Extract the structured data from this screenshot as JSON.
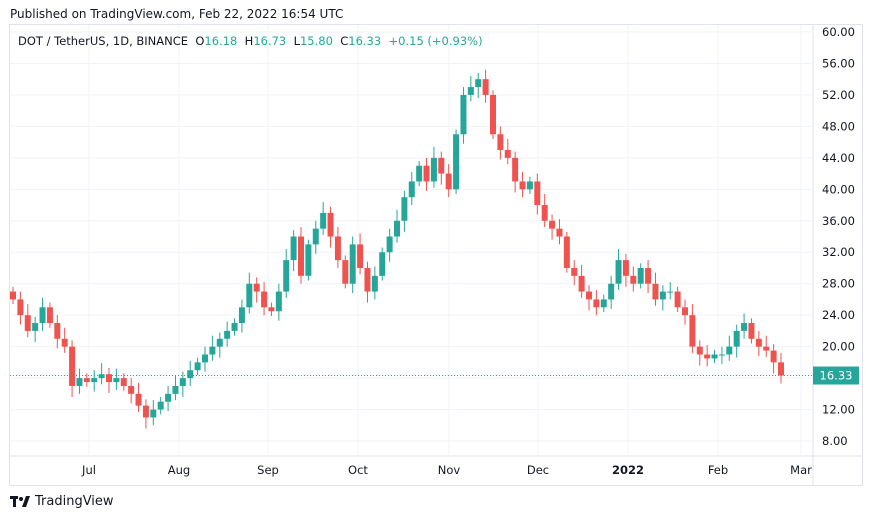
{
  "published": "Published on TradingView.com, Feb 22, 2022 16:54 UTC",
  "legend": {
    "symbol": "DOT / TetherUS, 1D, BINANCE",
    "o_label": "O",
    "o": "16.18",
    "h_label": "H",
    "h": "16.73",
    "l_label": "L",
    "l": "15.80",
    "c_label": "C",
    "c": "16.33",
    "change": "+0.15 (+0.93%)"
  },
  "logo_text": "TradingView",
  "colors": {
    "up": "#26a69a",
    "down": "#ef5350",
    "grid": "#f0f3fa"
  },
  "chart_data": {
    "type": "candlestick",
    "title": "DOT / TetherUS, 1D, BINANCE",
    "ylim": [
      4,
      62
    ],
    "y_ticks": [
      "60.00",
      "56.00",
      "52.00",
      "48.00",
      "44.00",
      "40.00",
      "36.00",
      "32.00",
      "28.00",
      "24.00",
      "20.00",
      "16.00",
      "12.00",
      "8.00"
    ],
    "x_ticks": [
      "Jul",
      "Aug",
      "Sep",
      "Oct",
      "Nov",
      "Dec",
      "2022",
      "Feb",
      "Mar"
    ],
    "last_price": "16.33",
    "closes_every_3_days": [
      26,
      24,
      22,
      23,
      25,
      23,
      21,
      20,
      15,
      16,
      15.5,
      16,
      16.5,
      15.5,
      16,
      15,
      14,
      12.5,
      11,
      12,
      13,
      14,
      15,
      16,
      17,
      18,
      19,
      20,
      21,
      22,
      23,
      25,
      28,
      27,
      25,
      24.5,
      27,
      31,
      34,
      29,
      33,
      35,
      37,
      34,
      31,
      28,
      33,
      30,
      27,
      29,
      32,
      34,
      36,
      39,
      41,
      43,
      41,
      44,
      42,
      40,
      47,
      52,
      53,
      54,
      52,
      47,
      45,
      44,
      41,
      40,
      41,
      38,
      36,
      35,
      34,
      30,
      29,
      27,
      26,
      25,
      26,
      28,
      31,
      29,
      28,
      30,
      28,
      26,
      27,
      27,
      25,
      24,
      20,
      19,
      18.5,
      19,
      19,
      20,
      22,
      23,
      21,
      20,
      19.5,
      18,
      16.33
    ]
  }
}
